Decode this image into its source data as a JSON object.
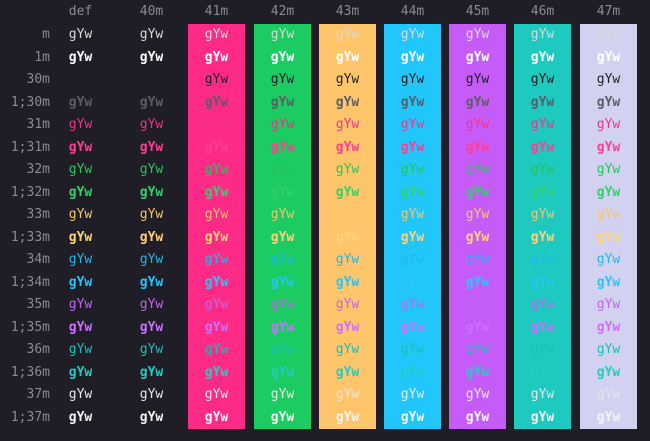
{
  "terminal": {
    "background": "#1f1e26",
    "label_color": "#8a8a94",
    "sample_text": "gYw",
    "columns": [
      "def",
      "40m",
      "41m",
      "42m",
      "43m",
      "44m",
      "45m",
      "46m",
      "47m"
    ],
    "rows": [
      "m",
      "1m",
      "30m",
      "1;30m",
      "31m",
      "1;31m",
      "32m",
      "1;32m",
      "33m",
      "1;33m",
      "34m",
      "1;34m",
      "35m",
      "1;35m",
      "36m",
      "1;36m",
      "37m",
      "1;37m"
    ],
    "bg_colors": {
      "def": null,
      "40m": null,
      "41m": "#fd2b86",
      "42m": "#1ccb61",
      "43m": "#ffc56a",
      "44m": "#21c7fb",
      "45m": "#c65cf8",
      "46m": "#1ec9bf",
      "47m": "#d2d2f0"
    },
    "fg_colors": {
      "m": "#d9d9d9",
      "1m": "#ffffff",
      "30m": "#1f1e26",
      "1;30m": "#5c5c66",
      "31m": "#f0338a",
      "1;31m": "#ff3d94",
      "32m": "#22c55e",
      "1;32m": "#2dd36a",
      "33m": "#f6c46a",
      "1;33m": "#ffd27a",
      "34m": "#1fb8ee",
      "1;34m": "#28c4fb",
      "35m": "#c064f0",
      "1;35m": "#cc70ff",
      "36m": "#19bfb6",
      "1;36m": "#22ccc3",
      "37m": "#e6e6e6",
      "1;37m": "#f4f4f4"
    }
  }
}
